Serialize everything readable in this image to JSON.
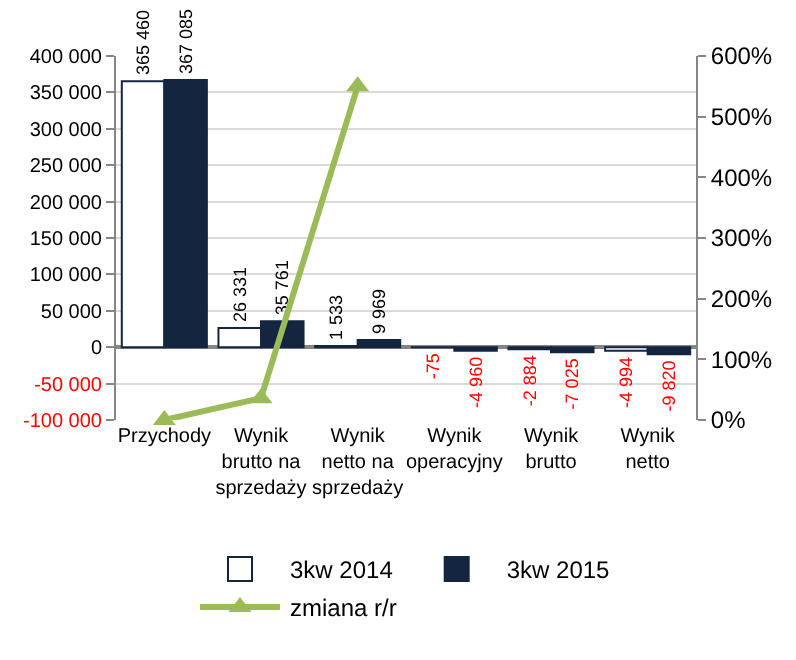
{
  "chart_data": {
    "type": "bar",
    "categories": [
      "Przychody",
      "Wynik brutto na sprzedaży",
      "Wynik netto na sprzedaży",
      "Wynik operacyjny",
      "Wynik brutto",
      "Wynik netto"
    ],
    "series": [
      {
        "name": "3kw 2014",
        "color": "#ffffff",
        "values": [
          365460,
          26331,
          1533,
          -75,
          -2884,
          -4994
        ],
        "value_labels": [
          "365 460",
          "26 331",
          "1 533",
          "-75",
          "-2 884",
          "-4 994"
        ]
      },
      {
        "name": "3kw 2015",
        "color": "#14253f",
        "values": [
          367085,
          35761,
          9969,
          -4960,
          -7025,
          -9820
        ],
        "value_labels": [
          "367 085",
          "35 761",
          "9 969",
          "-4 960",
          "-7 025",
          "-9 820"
        ]
      },
      {
        "name": "zmiana r/r",
        "type": "line",
        "axis": "y2",
        "color": "#9bbb59",
        "marker": "triangle",
        "values": [
          0,
          36,
          550,
          null,
          null,
          null
        ]
      }
    ],
    "ylim": [
      -100000,
      400000
    ],
    "yticks": [
      {
        "value": -100000,
        "label": "-100 000"
      },
      {
        "value": -50000,
        "label": "-50 000"
      },
      {
        "value": 0,
        "label": "0"
      },
      {
        "value": 50000,
        "label": "50 000"
      },
      {
        "value": 100000,
        "label": "100 000"
      },
      {
        "value": 150000,
        "label": "150 000"
      },
      {
        "value": 200000,
        "label": "200 000"
      },
      {
        "value": 250000,
        "label": "250 000"
      },
      {
        "value": 300000,
        "label": "300 000"
      },
      {
        "value": 350000,
        "label": "350 000"
      },
      {
        "value": 400000,
        "label": "400 000"
      }
    ],
    "y2lim": [
      0,
      600
    ],
    "y2ticks": [
      {
        "value": 0,
        "label": "0%"
      },
      {
        "value": 100,
        "label": "100%"
      },
      {
        "value": 200,
        "label": "200%"
      },
      {
        "value": 300,
        "label": "300%"
      },
      {
        "value": 400,
        "label": "400%"
      },
      {
        "value": 500,
        "label": "500%"
      },
      {
        "value": 600,
        "label": "600%"
      }
    ],
    "grid": "y",
    "legend": "bottom"
  }
}
